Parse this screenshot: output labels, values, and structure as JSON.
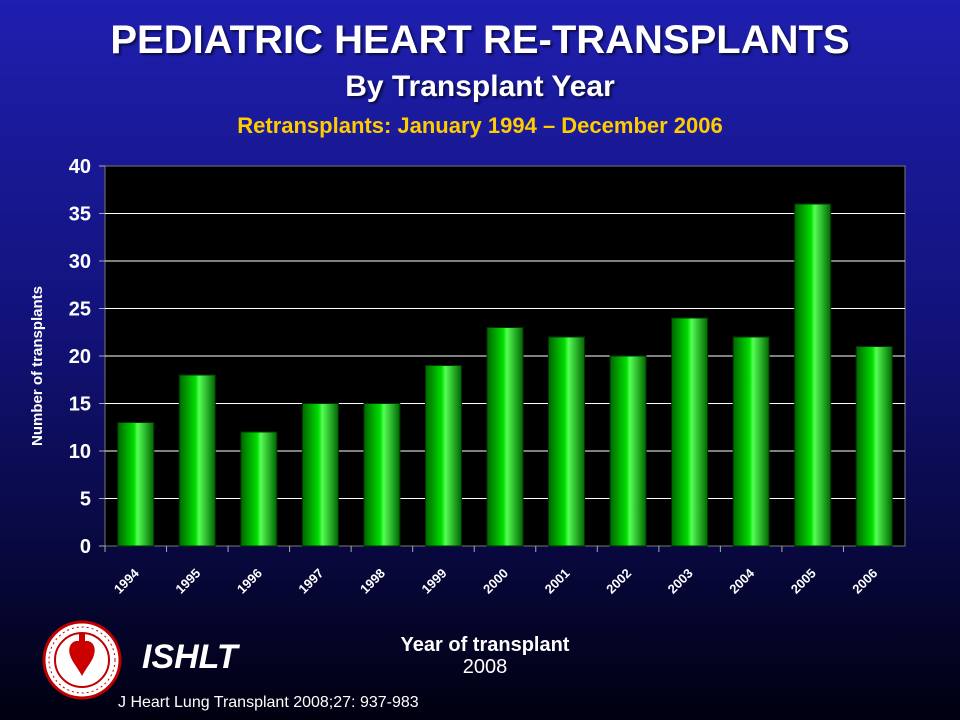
{
  "header": {
    "title": "PEDIATRIC HEART RE-TRANSPLANTS",
    "subtitle": "By Transplant Year",
    "subtitle2": "Retransplants: January 1994 – December 2006"
  },
  "chart_data": {
    "type": "bar",
    "title": "PEDIATRIC HEART RE-TRANSPLANTS",
    "subtitle": "By Transplant Year",
    "xlabel": "Year of transplant",
    "ylabel": "Number of transplants",
    "categories": [
      "1994",
      "1995",
      "1996",
      "1997",
      "1998",
      "1999",
      "2000",
      "2001",
      "2002",
      "2003",
      "2004",
      "2005",
      "2006"
    ],
    "values": [
      13,
      18,
      12,
      15,
      15,
      19,
      23,
      22,
      20,
      24,
      22,
      36,
      21
    ],
    "ylim": [
      0,
      40
    ],
    "yticks": [
      0,
      5,
      10,
      15,
      20,
      25,
      30,
      35,
      40
    ],
    "grid": true,
    "plot_background": "#000000",
    "bar_color": "#00dd00"
  },
  "footer": {
    "org": "ISHLT",
    "year": "2008",
    "citation": "J Heart Lung Transplant 2008;27: 937-983",
    "logo": "ishlt-seal-icon"
  },
  "colors": {
    "title": "#ffffff",
    "subtitle2": "#ffcc00",
    "bar": "#00dd00"
  }
}
